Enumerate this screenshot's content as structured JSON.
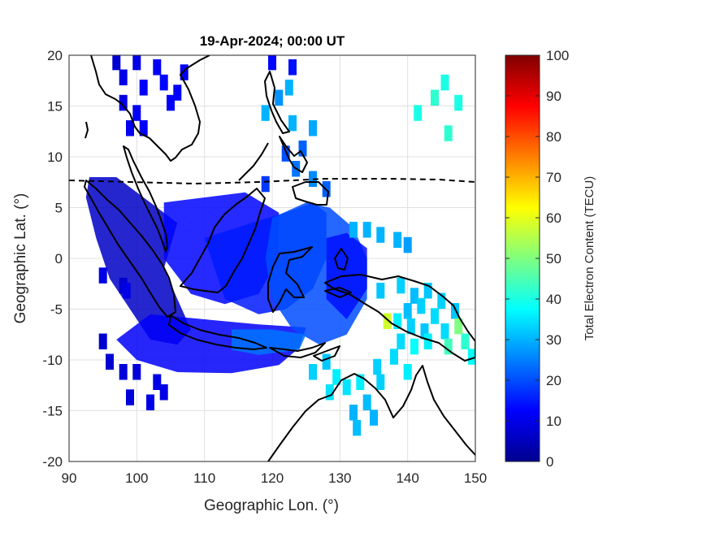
{
  "chart_data": {
    "type": "heatmap",
    "title": "19-Apr-2024; 00:00 UT",
    "xlabel": "Geographic Lon. (°)",
    "ylabel": "Geographic Lat. (°)",
    "xlim": [
      90,
      150
    ],
    "ylim": [
      -20,
      20
    ],
    "xticks": [
      "90",
      "100",
      "110",
      "120",
      "130",
      "140",
      "150"
    ],
    "yticks": [
      "20",
      "15",
      "10",
      "5",
      "0",
      "-5",
      "-10",
      "-15",
      "-20"
    ],
    "grid": true,
    "colorbar": {
      "label": "Total Electron Content (TECU)",
      "range": [
        0,
        100
      ],
      "ticks": [
        "100",
        "90",
        "80",
        "70",
        "60",
        "50",
        "40",
        "30",
        "20",
        "10",
        "0"
      ],
      "colormap": "jet"
    },
    "cells_tecu": [
      {
        "lon": 97,
        "lat": 19.5,
        "v": 8
      },
      {
        "lon": 100,
        "lat": 19.5,
        "v": 10
      },
      {
        "lon": 103,
        "lat": 19,
        "v": 12
      },
      {
        "lon": 98,
        "lat": 18,
        "v": 10
      },
      {
        "lon": 101,
        "lat": 17,
        "v": 12
      },
      {
        "lon": 104,
        "lat": 17.5,
        "v": 13
      },
      {
        "lon": 107,
        "lat": 18.5,
        "v": 12
      },
      {
        "lon": 106,
        "lat": 16.5,
        "v": 12
      },
      {
        "lon": 98,
        "lat": 15.5,
        "v": 10
      },
      {
        "lon": 100,
        "lat": 14.5,
        "v": 12
      },
      {
        "lon": 105,
        "lat": 15.5,
        "v": 12
      },
      {
        "lon": 99,
        "lat": 13,
        "v": 11
      },
      {
        "lon": 101,
        "lat": 13,
        "v": 12
      },
      {
        "lon": 120,
        "lat": 19.5,
        "v": 13
      },
      {
        "lon": 123,
        "lat": 19,
        "v": 14
      },
      {
        "lon": 121,
        "lat": 16,
        "v": 27
      },
      {
        "lon": 122.5,
        "lat": 17,
        "v": 30
      },
      {
        "lon": 119,
        "lat": 14.5,
        "v": 30
      },
      {
        "lon": 123,
        "lat": 13.5,
        "v": 30
      },
      {
        "lon": 126,
        "lat": 13,
        "v": 29
      },
      {
        "lon": 122,
        "lat": 10.5,
        "v": 20
      },
      {
        "lon": 124.5,
        "lat": 11,
        "v": 22
      },
      {
        "lon": 123.5,
        "lat": 9,
        "v": 24
      },
      {
        "lon": 126,
        "lat": 8,
        "v": 26
      },
      {
        "lon": 128,
        "lat": 7,
        "v": 22
      },
      {
        "lon": 119,
        "lat": 7.5,
        "v": 18
      },
      {
        "lon": 145.5,
        "lat": 17.5,
        "v": 40
      },
      {
        "lon": 144,
        "lat": 16,
        "v": 42
      },
      {
        "lon": 147.5,
        "lat": 15.5,
        "v": 40
      },
      {
        "lon": 141.5,
        "lat": 14.5,
        "v": 40
      },
      {
        "lon": 146,
        "lat": 12.5,
        "v": 42
      },
      {
        "lon": 132,
        "lat": 3,
        "v": 30
      },
      {
        "lon": 134,
        "lat": 3,
        "v": 30
      },
      {
        "lon": 136,
        "lat": 2.5,
        "v": 30
      },
      {
        "lon": 138.5,
        "lat": 2,
        "v": 30
      },
      {
        "lon": 140,
        "lat": 1.5,
        "v": 28
      },
      {
        "lon": 95,
        "lat": -1.5,
        "v": 10
      },
      {
        "lon": 98,
        "lat": -2.5,
        "v": 8
      },
      {
        "lon": 98.5,
        "lat": -3,
        "v": 10
      },
      {
        "lon": 136,
        "lat": -3,
        "v": 32
      },
      {
        "lon": 139,
        "lat": -2.5,
        "v": 33
      },
      {
        "lon": 141,
        "lat": -3.5,
        "v": 31
      },
      {
        "lon": 143,
        "lat": -3,
        "v": 32
      },
      {
        "lon": 145,
        "lat": -4,
        "v": 33
      },
      {
        "lon": 140,
        "lat": -5,
        "v": 31
      },
      {
        "lon": 142,
        "lat": -4.5,
        "v": 33
      },
      {
        "lon": 144,
        "lat": -5.5,
        "v": 34
      },
      {
        "lon": 147,
        "lat": -5,
        "v": 32
      },
      {
        "lon": 137,
        "lat": -6,
        "v": 58
      },
      {
        "lon": 138.5,
        "lat": -6,
        "v": 36
      },
      {
        "lon": 140.5,
        "lat": -6.5,
        "v": 33
      },
      {
        "lon": 142.5,
        "lat": -7,
        "v": 32
      },
      {
        "lon": 145.5,
        "lat": -7,
        "v": 34
      },
      {
        "lon": 147.5,
        "lat": -6.5,
        "v": 50
      },
      {
        "lon": 139,
        "lat": -8,
        "v": 34
      },
      {
        "lon": 141,
        "lat": -8.5,
        "v": 38
      },
      {
        "lon": 143,
        "lat": -8,
        "v": 36
      },
      {
        "lon": 146,
        "lat": -8.5,
        "v": 44
      },
      {
        "lon": 148.5,
        "lat": -8,
        "v": 42
      },
      {
        "lon": 149.5,
        "lat": -9.5,
        "v": 38
      },
      {
        "lon": 138,
        "lat": -9.5,
        "v": 34
      },
      {
        "lon": 140,
        "lat": -11,
        "v": 36
      },
      {
        "lon": 95,
        "lat": -8,
        "v": 8
      },
      {
        "lon": 96,
        "lat": -10,
        "v": 8
      },
      {
        "lon": 98,
        "lat": -11,
        "v": 9
      },
      {
        "lon": 100,
        "lat": -11,
        "v": 9
      },
      {
        "lon": 103,
        "lat": -12,
        "v": 10
      },
      {
        "lon": 104,
        "lat": -13,
        "v": 10
      },
      {
        "lon": 102,
        "lat": -14,
        "v": 10
      },
      {
        "lon": 99,
        "lat": -13.5,
        "v": 9
      },
      {
        "lon": 128,
        "lat": -10,
        "v": 32
      },
      {
        "lon": 129.5,
        "lat": -11.5,
        "v": 36
      },
      {
        "lon": 131,
        "lat": -12.5,
        "v": 35
      },
      {
        "lon": 133,
        "lat": -12,
        "v": 36
      },
      {
        "lon": 132,
        "lat": -15,
        "v": 30
      },
      {
        "lon": 134,
        "lat": -14,
        "v": 31
      },
      {
        "lon": 135,
        "lat": -15.5,
        "v": 30
      },
      {
        "lon": 132.5,
        "lat": -16.5,
        "v": 31
      },
      {
        "lon": 136,
        "lat": -12,
        "v": 33
      },
      {
        "lon": 135.5,
        "lat": -10.5,
        "v": 33
      },
      {
        "lon": 126,
        "lat": -11,
        "v": 33
      },
      {
        "lon": 128.5,
        "lat": -13,
        "v": 35
      }
    ]
  }
}
